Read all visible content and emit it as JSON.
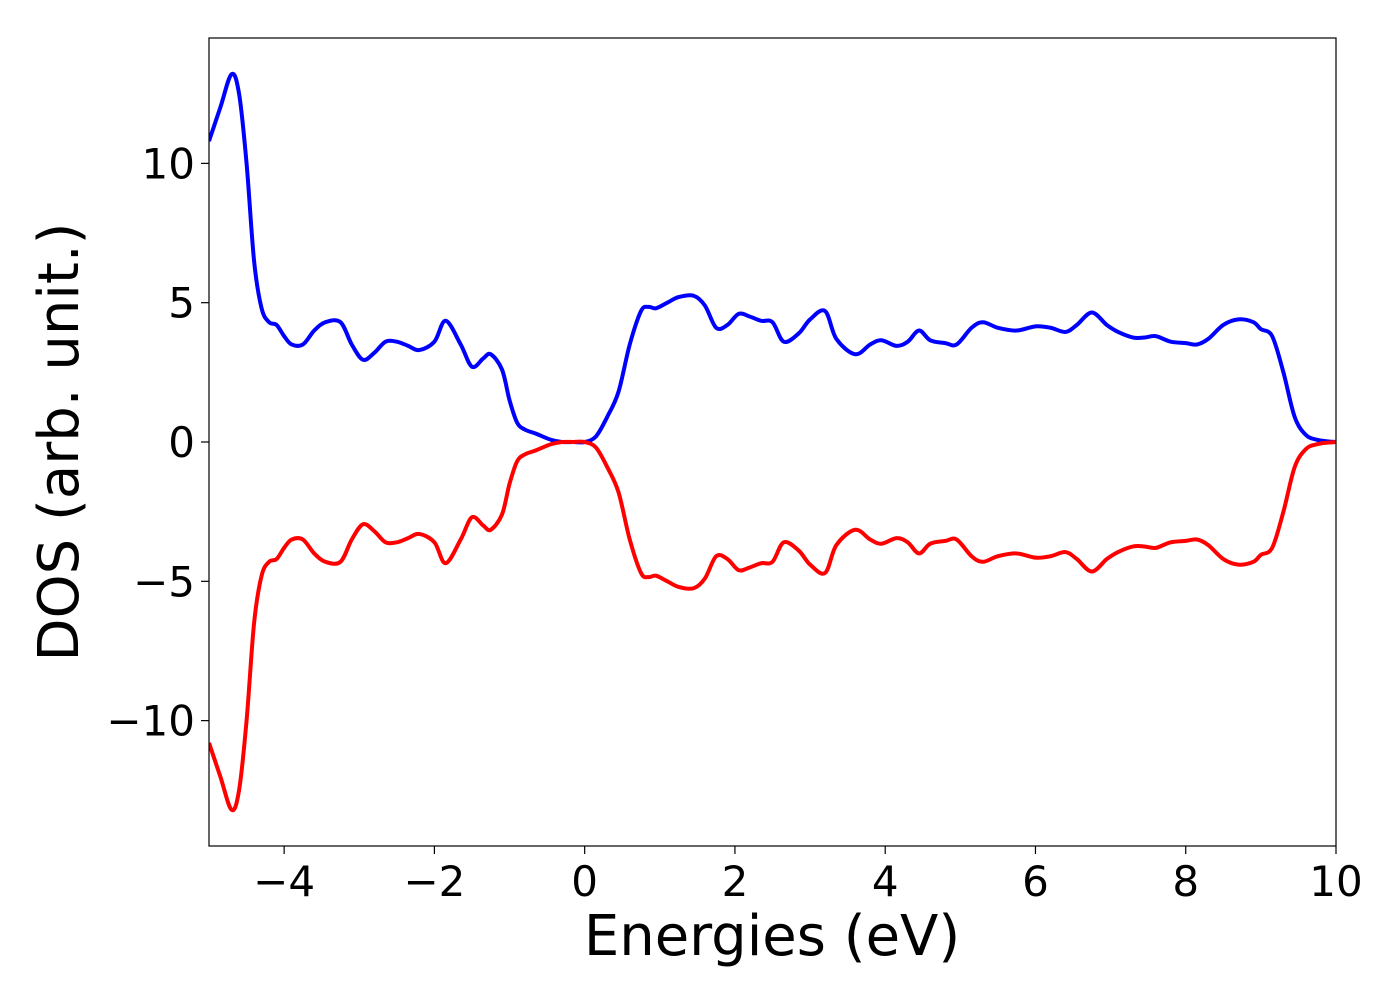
{
  "chart_data": {
    "type": "line",
    "title": "",
    "xlabel": "Energies (eV)",
    "ylabel": "DOS (arb. unit.)",
    "xlim": [
      -5,
      10
    ],
    "ylim": [
      -14.5,
      14.5
    ],
    "grid": false,
    "legend": "none",
    "x_ticks": [
      {
        "value": -4,
        "label": "−4"
      },
      {
        "value": -2,
        "label": "−2"
      },
      {
        "value": 0,
        "label": "0"
      },
      {
        "value": 2,
        "label": "2"
      },
      {
        "value": 4,
        "label": "4"
      },
      {
        "value": 6,
        "label": "6"
      },
      {
        "value": 8,
        "label": "8"
      },
      {
        "value": 10,
        "label": "10"
      }
    ],
    "y_ticks": [
      {
        "value": -10,
        "label": "−10"
      },
      {
        "value": -5,
        "label": "−5"
      },
      {
        "value": 0,
        "label": "0"
      },
      {
        "value": 5,
        "label": "5"
      },
      {
        "value": 10,
        "label": "10"
      }
    ],
    "series": [
      {
        "color": "#0000ff",
        "x": [
          -5.0,
          -4.85,
          -4.7,
          -4.6,
          -4.5,
          -4.4,
          -4.3,
          -4.2,
          -4.1,
          -4.0,
          -3.9,
          -3.75,
          -3.6,
          -3.45,
          -3.25,
          -3.1,
          -2.95,
          -2.8,
          -2.65,
          -2.5,
          -2.35,
          -2.2,
          -2.0,
          -1.85,
          -1.65,
          -1.5,
          -1.35,
          -1.25,
          -1.1,
          -1.0,
          -0.9,
          -0.8,
          -0.65,
          -0.45,
          -0.3,
          -0.15,
          0.0,
          0.15,
          0.3,
          0.45,
          0.6,
          0.75,
          0.85,
          0.95,
          1.1,
          1.25,
          1.45,
          1.6,
          1.75,
          1.9,
          2.05,
          2.2,
          2.35,
          2.5,
          2.65,
          2.85,
          3.0,
          3.2,
          3.35,
          3.6,
          3.8,
          3.95,
          4.15,
          4.3,
          4.45,
          4.6,
          4.8,
          4.95,
          5.15,
          5.3,
          5.5,
          5.75,
          6.0,
          6.2,
          6.4,
          6.55,
          6.75,
          6.95,
          7.1,
          7.3,
          7.45,
          7.6,
          7.8,
          8.0,
          8.15,
          8.3,
          8.5,
          8.7,
          8.9,
          9.0,
          9.15,
          9.3,
          9.45,
          9.6,
          9.75,
          9.9,
          10.0
        ],
        "y": [
          10.8,
          12.0,
          13.2,
          12.5,
          10.0,
          6.5,
          4.8,
          4.3,
          4.2,
          3.8,
          3.5,
          3.5,
          4.0,
          4.3,
          4.3,
          3.5,
          2.95,
          3.2,
          3.6,
          3.6,
          3.45,
          3.3,
          3.6,
          4.35,
          3.5,
          2.7,
          3.0,
          3.15,
          2.6,
          1.5,
          0.7,
          0.45,
          0.3,
          0.08,
          0.0,
          0.0,
          0.0,
          0.2,
          0.9,
          1.8,
          3.5,
          4.7,
          4.85,
          4.8,
          5.0,
          5.2,
          5.25,
          4.9,
          4.1,
          4.2,
          4.6,
          4.5,
          4.35,
          4.3,
          3.6,
          3.9,
          4.4,
          4.7,
          3.7,
          3.15,
          3.5,
          3.65,
          3.45,
          3.6,
          4.0,
          3.65,
          3.55,
          3.5,
          4.1,
          4.3,
          4.1,
          4.0,
          4.15,
          4.1,
          3.95,
          4.2,
          4.65,
          4.2,
          3.95,
          3.75,
          3.75,
          3.8,
          3.6,
          3.55,
          3.5,
          3.7,
          4.2,
          4.4,
          4.3,
          4.05,
          3.8,
          2.5,
          0.9,
          0.25,
          0.08,
          0.02,
          0.0
        ]
      },
      {
        "color": "#ff0000",
        "x": [
          -5.0,
          -4.85,
          -4.7,
          -4.6,
          -4.5,
          -4.4,
          -4.3,
          -4.2,
          -4.1,
          -4.0,
          -3.9,
          -3.75,
          -3.6,
          -3.45,
          -3.25,
          -3.1,
          -2.95,
          -2.8,
          -2.65,
          -2.5,
          -2.35,
          -2.2,
          -2.0,
          -1.85,
          -1.65,
          -1.5,
          -1.35,
          -1.25,
          -1.1,
          -1.0,
          -0.9,
          -0.8,
          -0.65,
          -0.45,
          -0.3,
          -0.15,
          0.0,
          0.15,
          0.3,
          0.45,
          0.6,
          0.75,
          0.85,
          0.95,
          1.1,
          1.25,
          1.45,
          1.6,
          1.75,
          1.9,
          2.05,
          2.2,
          2.35,
          2.5,
          2.65,
          2.85,
          3.0,
          3.2,
          3.35,
          3.6,
          3.8,
          3.95,
          4.15,
          4.3,
          4.45,
          4.6,
          4.8,
          4.95,
          5.15,
          5.3,
          5.5,
          5.75,
          6.0,
          6.2,
          6.4,
          6.55,
          6.75,
          6.95,
          7.1,
          7.3,
          7.45,
          7.6,
          7.8,
          8.0,
          8.15,
          8.3,
          8.5,
          8.7,
          8.9,
          9.0,
          9.15,
          9.3,
          9.45,
          9.6,
          9.75,
          9.9,
          10.0
        ],
        "y": [
          -10.8,
          -12.0,
          -13.2,
          -12.5,
          -10.0,
          -6.5,
          -4.8,
          -4.3,
          -4.2,
          -3.8,
          -3.5,
          -3.5,
          -4.0,
          -4.3,
          -4.3,
          -3.5,
          -2.95,
          -3.2,
          -3.6,
          -3.6,
          -3.45,
          -3.3,
          -3.6,
          -4.35,
          -3.5,
          -2.7,
          -3.0,
          -3.15,
          -2.6,
          -1.5,
          -0.7,
          -0.45,
          -0.3,
          -0.08,
          0.0,
          0.0,
          0.0,
          -0.2,
          -0.9,
          -1.8,
          -3.5,
          -4.7,
          -4.85,
          -4.8,
          -5.0,
          -5.2,
          -5.25,
          -4.9,
          -4.1,
          -4.2,
          -4.6,
          -4.5,
          -4.35,
          -4.3,
          -3.6,
          -3.9,
          -4.4,
          -4.7,
          -3.7,
          -3.15,
          -3.5,
          -3.65,
          -3.45,
          -3.6,
          -4.0,
          -3.65,
          -3.55,
          -3.5,
          -4.1,
          -4.3,
          -4.1,
          -4.0,
          -4.15,
          -4.1,
          -3.95,
          -4.2,
          -4.65,
          -4.2,
          -3.95,
          -3.75,
          -3.75,
          -3.8,
          -3.6,
          -3.55,
          -3.5,
          -3.7,
          -4.2,
          -4.4,
          -4.3,
          -4.05,
          -3.8,
          -2.5,
          -0.9,
          -0.25,
          -0.08,
          -0.02,
          0.0
        ]
      }
    ]
  }
}
